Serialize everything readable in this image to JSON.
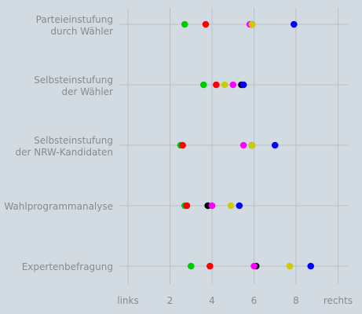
{
  "chart_data": {
    "type": "scatter",
    "title": "",
    "xlabel": "",
    "ylabel": "",
    "xlim": [
      0,
      10.4
    ],
    "x_ticks": [
      {
        "value": 0,
        "label": "links"
      },
      {
        "value": 2,
        "label": "2"
      },
      {
        "value": 4,
        "label": "4"
      },
      {
        "value": 6,
        "label": "6"
      },
      {
        "value": 8,
        "label": "8"
      },
      {
        "value": 10,
        "label": "rechts"
      }
    ],
    "grid": true,
    "legend": "none",
    "categories": [
      [
        "Parteieinstufung",
        "durch Wähler"
      ],
      [
        "Selbsteinstufung",
        "der Wähler"
      ],
      [
        "Selbsteinstufung",
        "der NRW-Kandidaten"
      ],
      [
        "Wahlprogrammanalyse"
      ],
      [
        "Expertenbefragung"
      ]
    ],
    "series": [
      {
        "color": "#00c800",
        "values": [
          2.7,
          3.6,
          2.5,
          2.7,
          3.0
        ]
      },
      {
        "color": "#ff0000",
        "values": [
          3.7,
          4.2,
          2.6,
          2.8,
          3.9
        ]
      },
      {
        "color": "#000000",
        "values": [
          5.9,
          5.4,
          5.9,
          3.8,
          6.1
        ]
      },
      {
        "color": "#ff00ff",
        "values": [
          5.8,
          5.0,
          5.5,
          4.0,
          6.0
        ]
      },
      {
        "color": "#cccc00",
        "values": [
          5.9,
          4.6,
          5.9,
          4.9,
          7.7
        ]
      },
      {
        "color": "#0000ff",
        "values": [
          7.9,
          5.5,
          7.0,
          5.3,
          8.7
        ]
      }
    ]
  }
}
